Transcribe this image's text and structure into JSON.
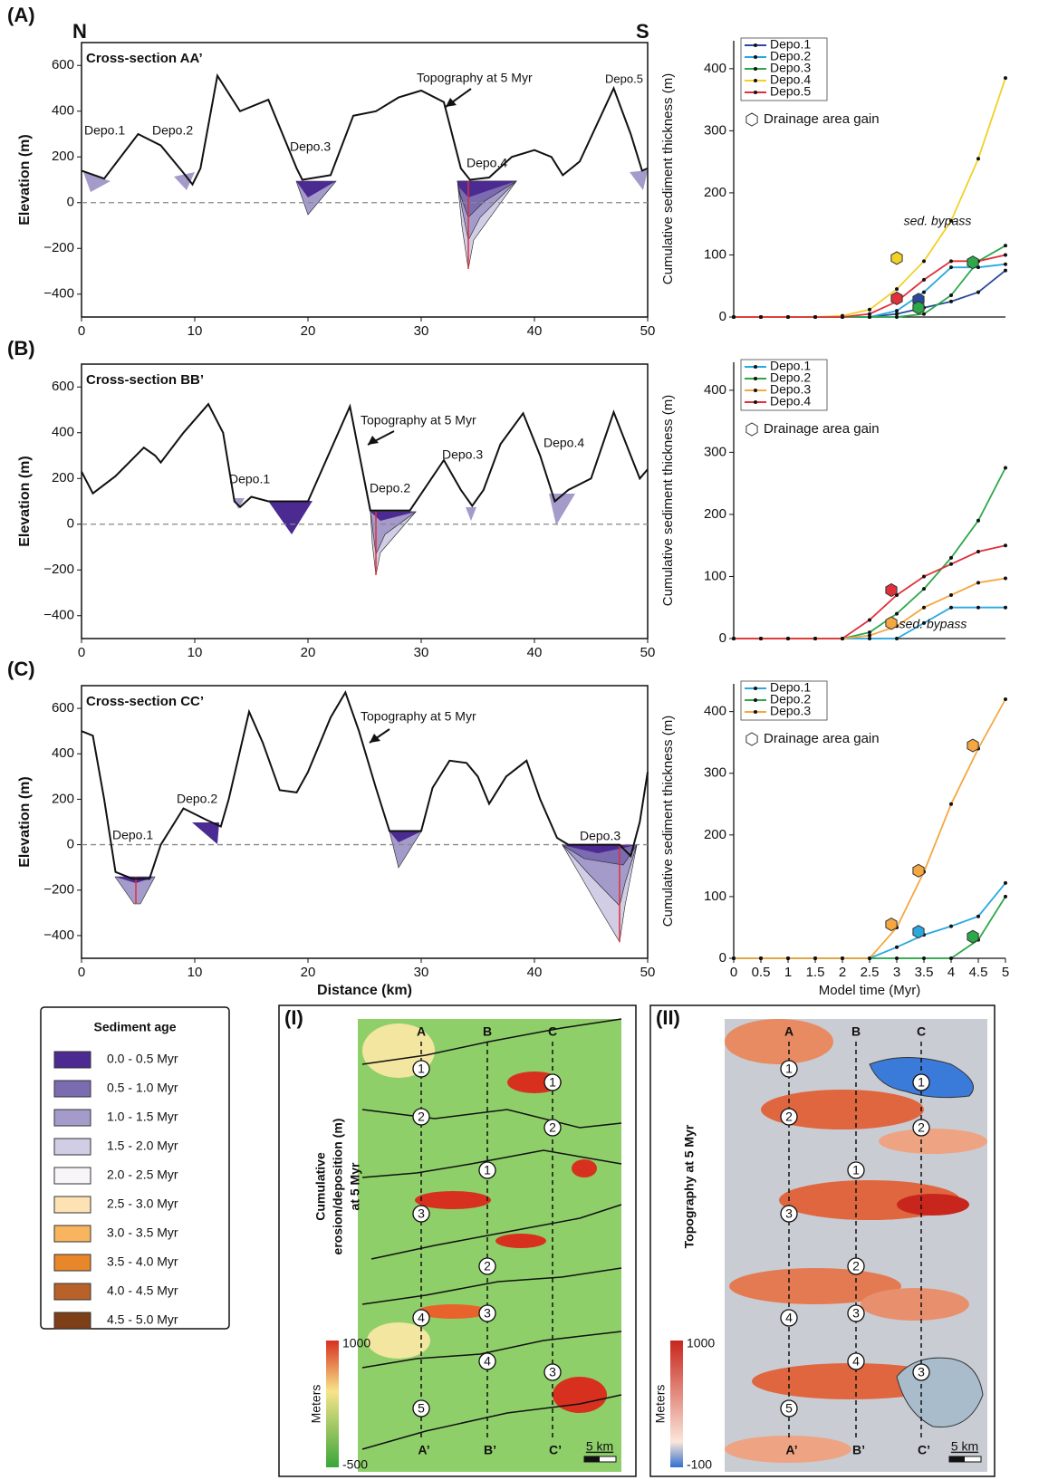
{
  "chart_data": [
    {
      "type": "line",
      "title": "Cross-section AA’",
      "panel_label": "(A)",
      "north": "N",
      "south": "S",
      "topo_label": "Topography at 5 Myr",
      "depo_labels": [
        "Depo.1",
        "Depo.2",
        "Depo.3",
        "Depo.4",
        "Depo.5"
      ],
      "ylabel": "Elevation (m)",
      "xlim": [
        0,
        50
      ],
      "ylim": [
        -500,
        700
      ],
      "xticks": [
        0,
        10,
        20,
        30,
        40,
        50
      ],
      "yticks": [
        {
          "value": -400,
          "label": "−400"
        },
        {
          "value": -200,
          "label": "−200"
        },
        0,
        200,
        400,
        600
      ],
      "color": "#111111",
      "x": [
        0,
        2,
        5,
        7,
        9,
        9.8,
        10.5,
        12,
        14,
        16.5,
        19,
        19.5,
        22,
        24,
        26,
        28,
        30,
        32,
        33.5,
        34.3,
        36,
        38,
        40,
        41.5,
        42.5,
        44,
        47,
        48.5,
        49.5,
        50
      ],
      "values": [
        140,
        105,
        300,
        250,
        130,
        80,
        150,
        555,
        400,
        450,
        150,
        100,
        120,
        380,
        400,
        460,
        490,
        440,
        150,
        100,
        110,
        200,
        230,
        200,
        120,
        180,
        500,
        300,
        140,
        150
      ]
    },
    {
      "type": "line",
      "title": "Cross-section BB’",
      "panel_label": "(B)",
      "topo_label": "Topography at 5 Myr",
      "depo_labels": [
        "Depo.1",
        "Depo.2",
        "Depo.3",
        "Depo.4"
      ],
      "ylabel": "Elevation (m)",
      "xlim": [
        0,
        50
      ],
      "ylim": [
        -500,
        700
      ],
      "xticks": [
        0,
        10,
        20,
        30,
        40,
        50
      ],
      "yticks": [
        {
          "value": -400,
          "label": "−400"
        },
        {
          "value": -200,
          "label": "−200"
        },
        0,
        200,
        400,
        600
      ],
      "color": "#111111",
      "x": [
        0,
        1,
        3,
        5.5,
        6.5,
        7,
        9,
        11.2,
        12.5,
        13.5,
        14,
        15,
        16.5,
        20,
        23.7,
        25.5,
        29,
        32,
        33.5,
        34.5,
        35.5,
        37,
        39,
        40.5,
        41.8,
        43,
        45,
        47,
        48.5,
        49.3,
        50
      ],
      "values": [
        230,
        135,
        210,
        335,
        300,
        270,
        400,
        525,
        400,
        100,
        75,
        120,
        100,
        100,
        515,
        60,
        60,
        280,
        150,
        80,
        150,
        350,
        485,
        300,
        100,
        150,
        200,
        490,
        300,
        200,
        240
      ]
    },
    {
      "type": "line",
      "title": "Cross-section CC’",
      "panel_label": "(C)",
      "topo_label": "Topography at 5 Myr",
      "depo_labels": [
        "Depo.1",
        "Depo.2",
        "Depo.3"
      ],
      "ylabel": "Elevation (m)",
      "xlabel": "Distance (km)",
      "xlim": [
        0,
        50
      ],
      "ylim": [
        -500,
        700
      ],
      "xticks": [
        0,
        10,
        20,
        30,
        40,
        50
      ],
      "yticks": [
        {
          "value": -400,
          "label": "−400"
        },
        {
          "value": -200,
          "label": "−200"
        },
        0,
        200,
        400,
        600
      ],
      "color": "#111111",
      "x": [
        0,
        1,
        2,
        3,
        4.5,
        6,
        7,
        9,
        11,
        12.3,
        13,
        14.8,
        16,
        17.5,
        19,
        20,
        22,
        23.3,
        24.5,
        26,
        27.2,
        30,
        31,
        32.5,
        34,
        35,
        36,
        37.5,
        39.3,
        40.5,
        42,
        43,
        47.5,
        48.5,
        49.3,
        50
      ],
      "values": [
        500,
        480,
        200,
        -120,
        -150,
        -150,
        0,
        160,
        110,
        80,
        200,
        585,
        450,
        240,
        230,
        320,
        560,
        670,
        500,
        250,
        60,
        60,
        250,
        370,
        360,
        300,
        180,
        300,
        370,
        200,
        30,
        0,
        0,
        -50,
        100,
        320
      ]
    },
    {
      "type": "line",
      "ylabel": "Cumulative sediment thickness (m)",
      "annotation": "sed. bypass",
      "xlim": [
        0,
        5
      ],
      "ylim": [
        0,
        445
      ],
      "yticks": [
        0,
        100,
        200,
        300,
        400
      ],
      "x": [
        0,
        0.5,
        1,
        1.5,
        2,
        2.5,
        3,
        3.5,
        4,
        4.5,
        5
      ],
      "series": [
        {
          "name": "Depo.1",
          "color": "#2b4a9b",
          "values": [
            0,
            0,
            0,
            0,
            0,
            0,
            5,
            15,
            25,
            40,
            75
          ]
        },
        {
          "name": "Depo.2",
          "color": "#29a8e0",
          "values": [
            0,
            0,
            0,
            0,
            0,
            0,
            10,
            40,
            80,
            80,
            85
          ]
        },
        {
          "name": "Depo.3",
          "color": "#2ca84a",
          "values": [
            0,
            0,
            0,
            0,
            0,
            0,
            0,
            5,
            35,
            90,
            115
          ]
        },
        {
          "name": "Depo.4",
          "color": "#f2d027",
          "values": [
            0,
            0,
            0,
            0,
            2,
            12,
            45,
            90,
            155,
            255,
            385
          ]
        },
        {
          "name": "Depo.5",
          "color": "#e0303a",
          "values": [
            0,
            0,
            0,
            0,
            0,
            5,
            25,
            60,
            90,
            90,
            100
          ]
        }
      ],
      "markers": {
        "name": "Drainage area gain",
        "points": [
          {
            "x": 3,
            "y": 95,
            "color": "#f2d027"
          },
          {
            "x": 3,
            "y": 30,
            "color": "#e0303a"
          },
          {
            "x": 3.4,
            "y": 28,
            "color": "#2b4a9b"
          },
          {
            "x": 3.4,
            "y": 15,
            "color": "#2ca84a"
          },
          {
            "x": 4.4,
            "y": 88,
            "color": "#2ca84a"
          }
        ]
      }
    },
    {
      "type": "line",
      "ylabel": "Cumulative sediment thickness (m)",
      "annotation": "sed. bypass",
      "xlim": [
        0,
        5
      ],
      "ylim": [
        0,
        445
      ],
      "yticks": [
        0,
        100,
        200,
        300,
        400
      ],
      "x": [
        0,
        0.5,
        1,
        1.5,
        2,
        2.5,
        3,
        3.5,
        4,
        4.5,
        5
      ],
      "series": [
        {
          "name": "Depo.1",
          "color": "#29a8e0",
          "values": [
            0,
            0,
            0,
            0,
            0,
            0,
            0,
            25,
            50,
            50,
            50
          ]
        },
        {
          "name": "Depo.2",
          "color": "#2ca84a",
          "values": [
            0,
            0,
            0,
            0,
            0,
            10,
            40,
            80,
            130,
            190,
            275
          ]
        },
        {
          "name": "Depo.3",
          "color": "#f5a742",
          "values": [
            0,
            0,
            0,
            0,
            0,
            5,
            20,
            50,
            70,
            90,
            97
          ]
        },
        {
          "name": "Depo.4",
          "color": "#e0303a",
          "values": [
            0,
            0,
            0,
            0,
            0,
            30,
            70,
            100,
            120,
            140,
            150
          ]
        }
      ],
      "markers": {
        "name": "Drainage area gain",
        "points": [
          {
            "x": 2.9,
            "y": 78,
            "color": "#e0303a"
          },
          {
            "x": 2.9,
            "y": 25,
            "color": "#f5a742"
          }
        ]
      }
    },
    {
      "type": "line",
      "ylabel": "Cumulative sediment thickness (m)",
      "xlabel": "Model time (Myr)",
      "xlim": [
        0,
        5
      ],
      "ylim": [
        0,
        445
      ],
      "yticks": [
        0,
        100,
        200,
        300,
        400
      ],
      "xticks": [
        0,
        0.5,
        1,
        1.5,
        2,
        2.5,
        3,
        3.5,
        4,
        4.5,
        5
      ],
      "x": [
        0,
        0.5,
        1,
        1.5,
        2,
        2.5,
        3,
        3.5,
        4,
        4.5,
        5
      ],
      "series": [
        {
          "name": "Depo.1",
          "color": "#29a8e0",
          "values": [
            0,
            0,
            0,
            0,
            0,
            0,
            18,
            38,
            52,
            68,
            122
          ]
        },
        {
          "name": "Depo.2",
          "color": "#2ca84a",
          "values": [
            0,
            0,
            0,
            0,
            0,
            0,
            0,
            0,
            0,
            30,
            100
          ]
        },
        {
          "name": "Depo.3",
          "color": "#f5a742",
          "values": [
            0,
            0,
            0,
            0,
            0,
            0,
            50,
            140,
            250,
            340,
            420
          ]
        }
      ],
      "markers": {
        "name": "Drainage area gain",
        "points": [
          {
            "x": 2.9,
            "y": 55,
            "color": "#f5a742"
          },
          {
            "x": 3.4,
            "y": 142,
            "color": "#f5a742"
          },
          {
            "x": 4.4,
            "y": 345,
            "color": "#f5a742"
          },
          {
            "x": 3.4,
            "y": 43,
            "color": "#29a8e0"
          },
          {
            "x": 4.4,
            "y": 35,
            "color": "#2ca84a"
          }
        ]
      }
    }
  ],
  "sediment_legend": {
    "title": "Sediment age",
    "items": [
      {
        "label": "0.0 - 0.5 Myr",
        "color": "#4b2a91"
      },
      {
        "label": "0.5 - 1.0 Myr",
        "color": "#7b6bb0"
      },
      {
        "label": "1.0 - 1.5 Myr",
        "color": "#a49bcb"
      },
      {
        "label": "1.5 - 2.0 Myr",
        "color": "#d0cde5"
      },
      {
        "label": "2.0 - 2.5 Myr",
        "color": "#f7f5f7"
      },
      {
        "label": "2.5 - 3.0 Myr",
        "color": "#fde3b4"
      },
      {
        "label": "3.0 - 3.5 Myr",
        "color": "#f8b45e"
      },
      {
        "label": "3.5 - 4.0 Myr",
        "color": "#e8862a"
      },
      {
        "label": "4.0 - 4.5 Myr",
        "color": "#b8622a"
      },
      {
        "label": "4.5 - 5.0 Myr",
        "color": "#7d3f18"
      }
    ]
  },
  "maps": [
    {
      "label": "(I)",
      "title_lines": [
        "Cumulative",
        "erosion/deposition (m)",
        "at 5 Myr"
      ],
      "colorbar_title": "Meters",
      "colorbar_max": "1000",
      "colorbar_min": "-500",
      "scale": "5 km",
      "columns": [
        {
          "top": "A",
          "bottom": "A’",
          "points": [
            "1",
            "2",
            "3",
            "4",
            "5"
          ]
        },
        {
          "top": "B",
          "bottom": "B’",
          "points": [
            "1",
            "2",
            "3",
            "4"
          ]
        },
        {
          "top": "C",
          "bottom": "C’",
          "points": [
            "1",
            "2",
            "3"
          ]
        }
      ]
    },
    {
      "label": "(II)",
      "title_lines": [
        "Topography at 5 Myr"
      ],
      "colorbar_title": "Meters",
      "colorbar_max": "1000",
      "colorbar_min": "-100",
      "scale": "5 km",
      "columns": [
        {
          "top": "A",
          "bottom": "A’",
          "points": [
            "1",
            "2",
            "3",
            "4",
            "5"
          ]
        },
        {
          "top": "B",
          "bottom": "B’",
          "points": [
            "1",
            "2",
            "3",
            "4"
          ]
        },
        {
          "top": "C",
          "bottom": "C’",
          "points": [
            "1",
            "2",
            "3"
          ]
        }
      ]
    }
  ]
}
